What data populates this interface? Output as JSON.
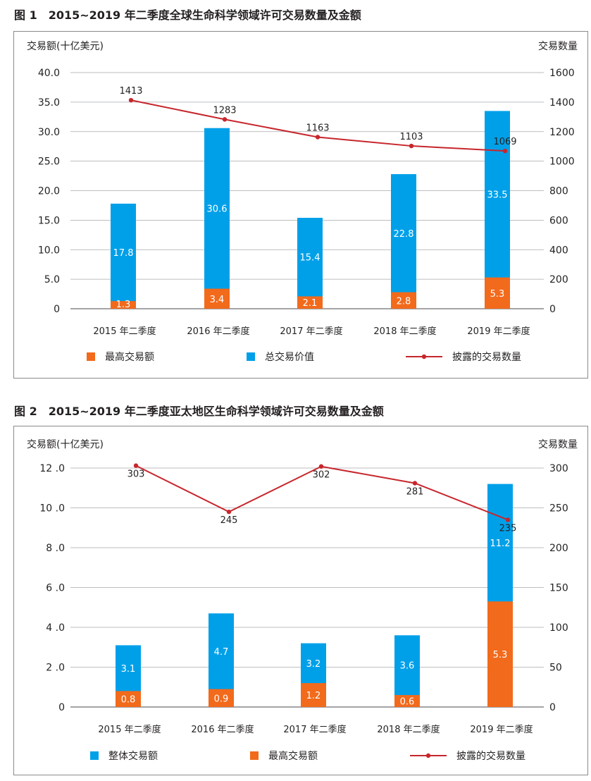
{
  "figures": [
    {
      "title": "图 1　2015~2019 年二季度全球生命科学领域许可交易数量及金额",
      "left_axis_label": "交易额(十亿美元)",
      "right_axis_label": "交易数量",
      "left_ticks": [
        "40.0",
        "35.0",
        "30.0",
        "25.0",
        "20.0",
        "15.0",
        "10.0",
        "5.0",
        "0"
      ],
      "right_ticks": [
        "1600",
        "1400",
        "1200",
        "1000",
        "800",
        "600",
        "400",
        "200",
        "0"
      ],
      "legend": [
        "最高交易额",
        "总交易价值",
        "披露的交易数量"
      ],
      "colors": {
        "orange": "#f26a1b",
        "blue": "#00a0e9",
        "line": "#c7262c"
      },
      "chart_data": {
        "type": "bar",
        "categories": [
          "2015 年二季度",
          "2016 年二季度",
          "2017 年二季度",
          "2018 年二季度",
          "2019 年二季度"
        ],
        "ylim": [
          0,
          40
        ],
        "y2lim": [
          0,
          1600
        ],
        "series": [
          {
            "name": "最高交易额",
            "type": "bar",
            "axis": "left",
            "values": [
              1.3,
              3.4,
              2.1,
              2.8,
              5.3
            ],
            "labels": [
              "1.3",
              "3.4",
              "2.1",
              "2.8",
              "5.3"
            ]
          },
          {
            "name": "总交易价值",
            "type": "bar",
            "axis": "left",
            "values": [
              17.8,
              30.6,
              15.4,
              22.8,
              33.5
            ],
            "labels": [
              "17.8",
              "30.6",
              "15.4",
              "22.8",
              "33.5"
            ]
          },
          {
            "name": "披露的交易数量",
            "type": "line",
            "axis": "right",
            "values": [
              1413,
              1283,
              1163,
              1103,
              1069
            ],
            "labels": [
              "1413",
              "1283",
              "1163",
              "1103",
              "1069"
            ]
          }
        ],
        "grid": true,
        "legend_position": "bottom"
      }
    },
    {
      "title": "图 2　2015~2019 年二季度亚太地区生命科学领域许可交易数量及金额",
      "left_axis_label": "交易额(十亿美元)",
      "right_axis_label": "交易数量",
      "left_ticks": [
        "12 .0",
        "10 .0",
        "8 .0",
        "6 .0",
        "4 .0",
        "2 .0",
        "0"
      ],
      "right_ticks": [
        "300",
        "250",
        "200",
        "150",
        "100",
        "50",
        "0"
      ],
      "legend": [
        "整体交易额",
        "最高交易额",
        "披露的交易数量"
      ],
      "colors": {
        "orange": "#f26a1b",
        "blue": "#00a0e9",
        "line": "#c7262c"
      },
      "chart_data": {
        "type": "bar",
        "categories": [
          "2015 年二季度",
          "2016 年二季度",
          "2017 年二季度",
          "2018 年二季度",
          "2019 年二季度"
        ],
        "ylim": [
          0,
          12
        ],
        "y2lim": [
          0,
          300
        ],
        "series": [
          {
            "name": "最高交易额",
            "type": "bar",
            "axis": "left",
            "values": [
              0.8,
              0.9,
              1.2,
              0.6,
              5.3
            ],
            "labels": [
              "0.8",
              "0.9",
              "1.2",
              "0.6",
              "5.3"
            ]
          },
          {
            "name": "整体交易额",
            "type": "bar",
            "axis": "left",
            "values": [
              3.1,
              4.7,
              3.2,
              3.6,
              11.2
            ],
            "labels": [
              "3.1",
              "4.7",
              "3.2",
              "3.6",
              "11.2"
            ]
          },
          {
            "name": "披露的交易数量",
            "type": "line",
            "axis": "right",
            "values": [
              303,
              245,
              302,
              281,
              235
            ],
            "labels": [
              "303",
              "245",
              "302",
              "281",
              "235"
            ]
          }
        ],
        "grid": true,
        "legend_position": "bottom"
      }
    }
  ]
}
